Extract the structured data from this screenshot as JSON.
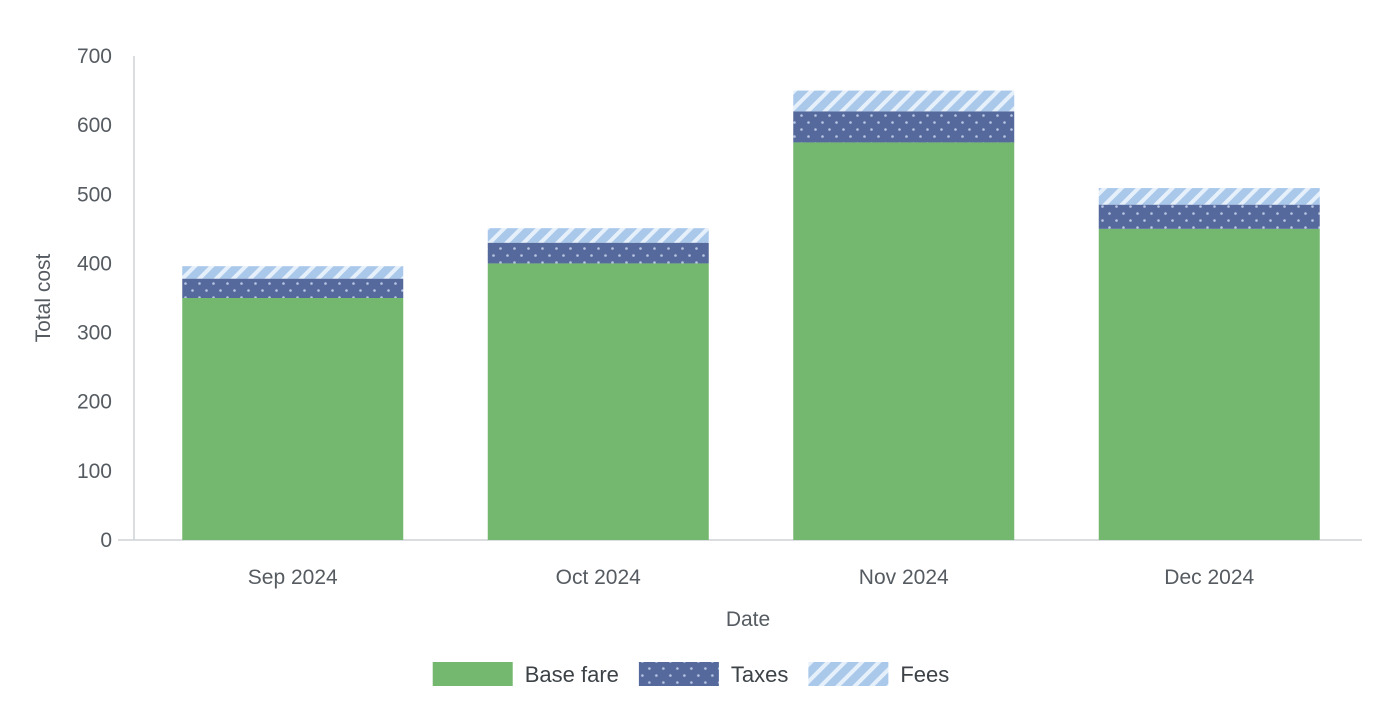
{
  "chart_data": {
    "type": "bar",
    "stacked": true,
    "title": "",
    "xlabel": "Date",
    "ylabel": "Total cost",
    "categories": [
      "Sep 2024",
      "Oct 2024",
      "Nov 2024",
      "Dec 2024"
    ],
    "series": [
      {
        "name": "Base fare",
        "values": [
          350,
          400,
          575,
          450
        ],
        "color": "#74b76e",
        "pattern": "solid"
      },
      {
        "name": "Taxes",
        "values": [
          28,
          30,
          45,
          35
        ],
        "color": "#55699c",
        "pattern": "dots"
      },
      {
        "name": "Fees",
        "values": [
          18,
          21,
          30,
          24
        ],
        "color": "#a9c8ea",
        "pattern": "stripes"
      }
    ],
    "ylim": [
      0,
      700
    ],
    "yticks": [
      "0",
      "100",
      "200",
      "300",
      "400",
      "500",
      "600",
      "700"
    ],
    "grid": false,
    "legend": "bottom-center"
  }
}
